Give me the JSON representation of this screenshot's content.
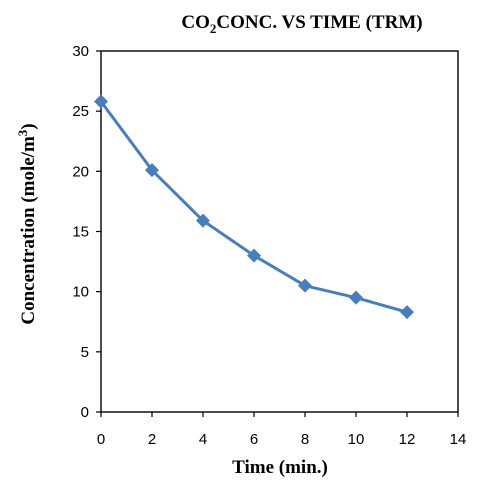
{
  "chart_data": {
    "type": "line",
    "title": {
      "prefix": "CO",
      "sub": "2",
      "rest": "CONC. VS TIME (TRM)"
    },
    "xlabel": "Time (min.)",
    "ylabel": {
      "text": "Concentration (mole/m",
      "sup": "3",
      "close": ")"
    },
    "xlim": [
      0,
      14
    ],
    "ylim": [
      0,
      30
    ],
    "xticks": [
      "0",
      "2",
      "4",
      "6",
      "8",
      "10",
      "12",
      "14"
    ],
    "yticks": [
      "0",
      "5",
      "10",
      "15",
      "20",
      "25",
      "30"
    ],
    "grid": false,
    "series": [
      {
        "x": [
          0,
          2,
          4,
          6,
          8,
          10,
          12
        ],
        "y": [
          25.8,
          20.1,
          15.9,
          13.0,
          10.5,
          9.5,
          8.3
        ],
        "color": "#4a7ebb",
        "marker": "diamond"
      }
    ]
  }
}
